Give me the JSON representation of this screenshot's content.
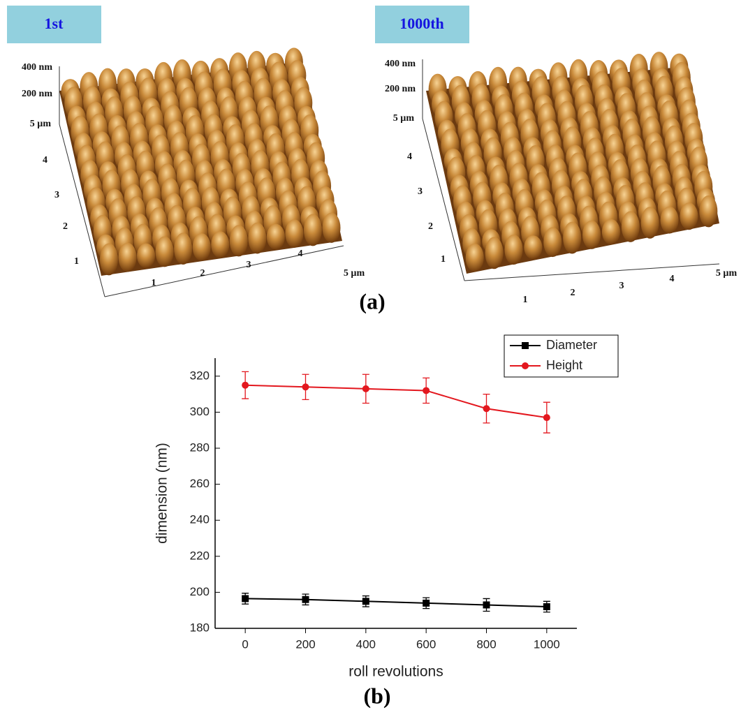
{
  "panels": [
    {
      "title": "1st",
      "z_ticks": [
        "400 nm",
        "200 nm"
      ],
      "y_ticks": [
        "5 µm",
        "4",
        "3",
        "2",
        "1"
      ],
      "x_ticks": [
        "1",
        "2",
        "3",
        "4",
        "5 µm"
      ]
    },
    {
      "title": "1000th",
      "z_ticks": [
        "400 nm",
        "200 nm"
      ],
      "y_ticks": [
        "5 µm",
        "4",
        "3",
        "2",
        "1"
      ],
      "x_ticks": [
        "1",
        "2",
        "3",
        "4",
        "5 µm"
      ]
    }
  ],
  "captions": {
    "a": "(a)",
    "b": "(b)"
  },
  "chart_data": {
    "type": "line",
    "x_label": "roll revolutions",
    "y_label": "dimension (nm)",
    "x": [
      0,
      200,
      400,
      600,
      800,
      1000
    ],
    "series": [
      {
        "name": "Diameter",
        "color": "#000000",
        "marker": "square",
        "values": [
          196.5,
          196,
          195,
          194,
          193,
          192
        ],
        "errors": [
          3,
          3,
          3,
          3,
          3.5,
          3
        ]
      },
      {
        "name": "Height",
        "color": "#e3171e",
        "marker": "circle",
        "values": [
          315,
          314,
          313,
          312,
          302,
          297
        ],
        "errors": [
          7.5,
          7,
          8,
          7,
          8,
          8.5
        ]
      }
    ],
    "xlim": [
      -100,
      1100
    ],
    "xticks": [
      0,
      200,
      400,
      600,
      800,
      1000
    ],
    "ylim": [
      180,
      330
    ],
    "yticks": [
      180,
      200,
      220,
      240,
      260,
      280,
      300,
      320
    ],
    "legend": "top-right",
    "grid": false
  }
}
